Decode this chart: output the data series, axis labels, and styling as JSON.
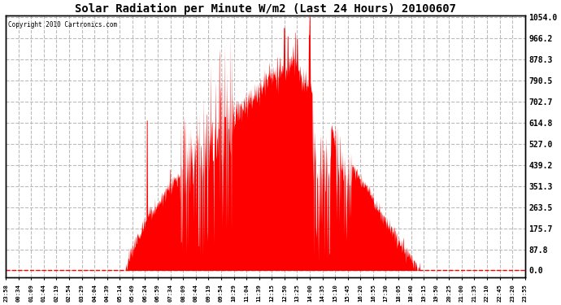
{
  "title": "Solar Radiation per Minute W/m2 (Last 24 Hours) 20100607",
  "copyright_text": "Copyright 2010 Cartronics.com",
  "fill_color": "#FF0000",
  "dashed_line_color": "#FF0000",
  "grid_color": "#AAAAAA",
  "background_color": "#FFFFFF",
  "plot_bg_color": "#FFFFFF",
  "yticks": [
    0.0,
    87.8,
    175.7,
    263.5,
    351.3,
    439.2,
    527.0,
    614.8,
    702.7,
    790.5,
    878.3,
    966.2,
    1054.0
  ],
  "ymax": 1054.0,
  "ymin": 0.0,
  "xtick_labels": [
    "23:58",
    "00:34",
    "01:09",
    "01:44",
    "02:19",
    "02:54",
    "03:29",
    "04:04",
    "04:39",
    "05:14",
    "05:49",
    "06:24",
    "06:59",
    "07:34",
    "08:09",
    "08:44",
    "09:19",
    "09:54",
    "10:29",
    "11:04",
    "11:39",
    "12:15",
    "12:50",
    "13:25",
    "14:00",
    "14:35",
    "15:10",
    "15:45",
    "16:20",
    "16:55",
    "17:30",
    "18:05",
    "18:40",
    "19:15",
    "19:50",
    "20:25",
    "21:00",
    "21:35",
    "22:10",
    "22:45",
    "23:20",
    "23:55"
  ],
  "num_points": 1440
}
